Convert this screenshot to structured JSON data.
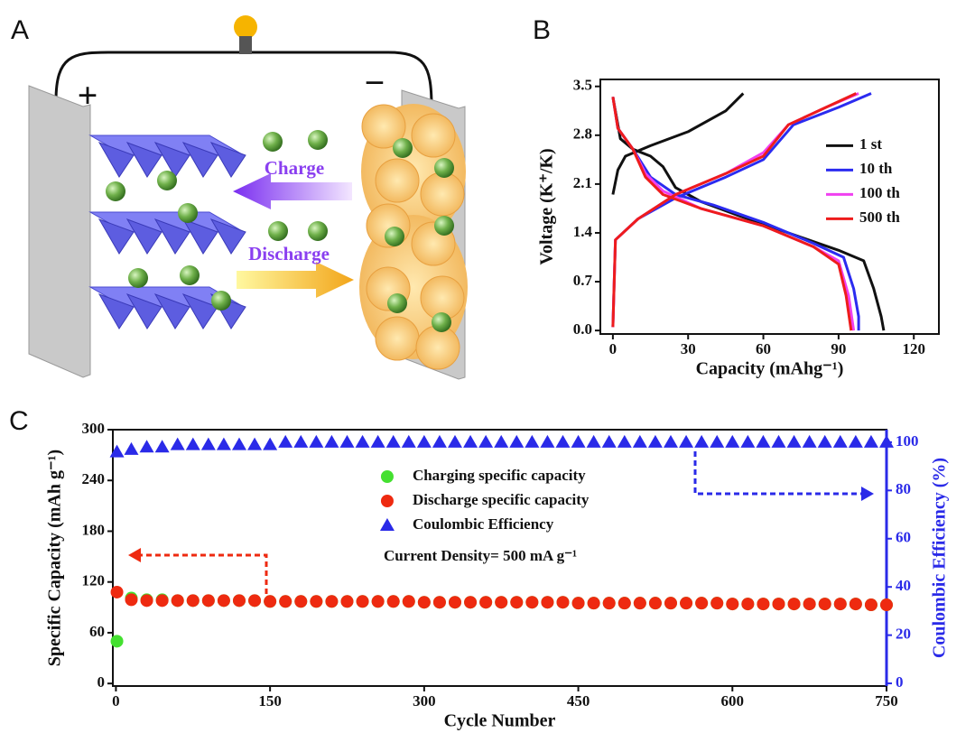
{
  "panel_labels": [
    "A",
    "B",
    "C"
  ],
  "diagram": {
    "positive": "+",
    "negative": "−",
    "charge_label": "Charge",
    "discharge_label": "Discharge"
  },
  "chart_data": [
    {
      "type": "line",
      "x_label": "Capacity (mAhg⁻¹)",
      "y_label": "Voltage (K⁺/K)",
      "xlim": [
        -5,
        130
      ],
      "xticks": [
        0,
        30,
        60,
        90,
        120
      ],
      "ylim": [
        -0.05,
        3.6
      ],
      "yticks": [
        {
          "value": 0,
          "label": "0.0"
        },
        0.7,
        1.4,
        2.1,
        2.8,
        3.5
      ],
      "legend": "center right",
      "series": [
        {
          "name": "1 st",
          "color": "#111111",
          "x": [
            0,
            3,
            8,
            15,
            20,
            25,
            35,
            50,
            70,
            90,
            100,
            104,
            107,
            108,
            null,
            0,
            2,
            5,
            15,
            30,
            45,
            52
          ],
          "values": [
            3.35,
            2.75,
            2.6,
            2.5,
            2.35,
            2.05,
            1.85,
            1.65,
            1.4,
            1.15,
            1.0,
            0.6,
            0.2,
            0,
            null,
            1.95,
            2.3,
            2.5,
            2.65,
            2.85,
            3.15,
            3.4
          ]
        },
        {
          "name": "10 th",
          "color": "#2b2bf0",
          "x": [
            0,
            2,
            8,
            15,
            25,
            40,
            60,
            80,
            92,
            96,
            98,
            98,
            null,
            0,
            1,
            10,
            25,
            45,
            60,
            72,
            90,
            103
          ],
          "values": [
            3.35,
            2.9,
            2.6,
            2.2,
            1.95,
            1.8,
            1.55,
            1.25,
            1.05,
            0.6,
            0.2,
            0,
            null,
            0.05,
            1.3,
            1.6,
            1.9,
            2.2,
            2.45,
            2.95,
            3.2,
            3.4
          ]
        },
        {
          "name": "100 th",
          "color": "#f040f0",
          "x": [
            0,
            2,
            8,
            13,
            20,
            35,
            60,
            80,
            90,
            94,
            96,
            null,
            0,
            1,
            10,
            25,
            45,
            60,
            70,
            85,
            98
          ],
          "values": [
            3.35,
            2.9,
            2.6,
            2.25,
            2.0,
            1.75,
            1.5,
            1.2,
            1.0,
            0.5,
            0,
            null,
            0.05,
            1.3,
            1.6,
            1.95,
            2.25,
            2.55,
            2.95,
            3.2,
            3.4
          ]
        },
        {
          "name": "500 th",
          "color": "#ee1c1c",
          "x": [
            0,
            2,
            8,
            13,
            20,
            35,
            60,
            80,
            90,
            93,
            95,
            null,
            0,
            1,
            10,
            25,
            45,
            60,
            70,
            85,
            97
          ],
          "values": [
            3.35,
            2.9,
            2.6,
            2.2,
            1.95,
            1.75,
            1.5,
            1.2,
            0.95,
            0.5,
            0,
            null,
            0.05,
            1.3,
            1.6,
            1.95,
            2.25,
            2.5,
            2.95,
            3.2,
            3.4
          ]
        }
      ]
    },
    {
      "type": "scatter",
      "x_label": "Cycle Number",
      "y_label": "Specific Capacity (mAh g⁻¹)",
      "y2_label": "Coulombic Efficiency (%)",
      "annotation": "Current Density= 500 mA g⁻¹",
      "xlim": [
        -3,
        750
      ],
      "xticks": [
        0,
        150,
        300,
        450,
        600,
        750
      ],
      "ylim": [
        -3,
        300
      ],
      "yticks": [
        0,
        60,
        120,
        180,
        240,
        300
      ],
      "y2lim": [
        -1.1,
        105.2
      ],
      "y2ticks": [
        0,
        20,
        40,
        60,
        80,
        100
      ],
      "legend": "upper center",
      "x": [
        1,
        15,
        30,
        45,
        60,
        75,
        90,
        105,
        120,
        135,
        150,
        165,
        180,
        195,
        210,
        225,
        240,
        255,
        270,
        285,
        300,
        315,
        330,
        345,
        360,
        375,
        390,
        405,
        420,
        435,
        450,
        465,
        480,
        495,
        510,
        525,
        540,
        555,
        570,
        585,
        600,
        615,
        630,
        645,
        660,
        675,
        690,
        705,
        720,
        735,
        750
      ],
      "series": [
        {
          "name": "Charging specific capacity",
          "color": "#44e030",
          "marker": "circle",
          "values": [
            50,
            101,
            99,
            99,
            98,
            98,
            98,
            98,
            98,
            98,
            97,
            97,
            97,
            97,
            97,
            97,
            97,
            97,
            97,
            97,
            96,
            96,
            96,
            96,
            96,
            96,
            96,
            96,
            96,
            96,
            95,
            95,
            95,
            95,
            95,
            95,
            95,
            95,
            95,
            95,
            94,
            94,
            94,
            94,
            94,
            94,
            94,
            94,
            94,
            93,
            93
          ]
        },
        {
          "name": "Discharge specific capacity",
          "color": "#ee2a10",
          "marker": "circle",
          "values": [
            108,
            99,
            98,
            98,
            98,
            98,
            98,
            98,
            98,
            98,
            97,
            97,
            97,
            97,
            97,
            97,
            97,
            97,
            97,
            97,
            96,
            96,
            96,
            96,
            96,
            96,
            96,
            96,
            96,
            96,
            95,
            95,
            95,
            95,
            95,
            95,
            95,
            95,
            95,
            95,
            94,
            94,
            94,
            94,
            94,
            94,
            94,
            94,
            94,
            93,
            93
          ]
        },
        {
          "name": "Coulombic Efficiency",
          "color": "#2a2ae8",
          "marker": "triangle",
          "axis": "y2",
          "values": [
            96,
            97,
            98,
            98,
            99,
            99,
            99,
            99,
            99,
            99,
            99,
            100,
            100,
            100,
            100,
            100,
            100,
            100,
            100,
            100,
            100,
            100,
            100,
            100,
            100,
            100,
            100,
            100,
            100,
            100,
            100,
            100,
            100,
            100,
            100,
            100,
            100,
            100,
            100,
            100,
            100,
            100,
            100,
            100,
            100,
            100,
            100,
            100,
            100,
            100,
            100
          ]
        }
      ]
    }
  ]
}
